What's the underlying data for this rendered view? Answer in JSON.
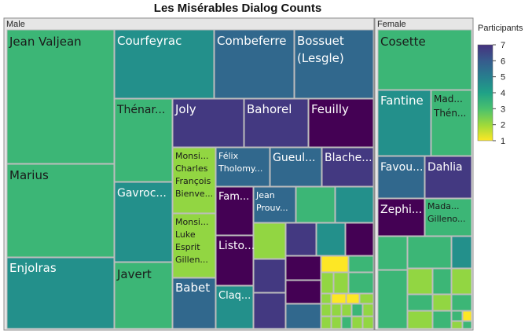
{
  "chart_data": {
    "type": "treemap",
    "title": "Les Misérables Dialog Counts",
    "color_legend": {
      "title": "Participants",
      "min": 1,
      "max": 7,
      "ticks": [
        1,
        2,
        3,
        4,
        5,
        6,
        7
      ]
    },
    "groups": [
      {
        "name": "Male",
        "cells": [
          {
            "label": "Jean Valjean",
            "participants": 3
          },
          {
            "label": "Marius",
            "participants": 3
          },
          {
            "label": "Enjolras",
            "participants": 4
          },
          {
            "label": "Courfeyrac",
            "participants": 4
          },
          {
            "label": "Combeferre",
            "participants": 5
          },
          {
            "label": "Bossuet (Lesgle)",
            "participants": 5
          },
          {
            "label": "Thénar...",
            "participants": 3
          },
          {
            "label": "Joly",
            "participants": 6
          },
          {
            "label": "Bahorel",
            "participants": 6
          },
          {
            "label": "Feuilly",
            "participants": 7
          },
          {
            "label": "Gavroc...",
            "participants": 4
          },
          {
            "label": "Monsi... Charles François Bienve...",
            "participants": 2
          },
          {
            "label": "Félix Tholomy...",
            "participants": 5
          },
          {
            "label": "Gueul...",
            "participants": 5
          },
          {
            "label": "Blache...",
            "participants": 6
          },
          {
            "label": "Fam...",
            "participants": 7
          },
          {
            "label": "Jean Prouv...",
            "participants": 5
          },
          {
            "label": "Monsi... Luke Esprit Gillen...",
            "participants": 2
          },
          {
            "label": "Listo...",
            "participants": 7
          },
          {
            "label": "Javert",
            "participants": 3
          },
          {
            "label": "Babet",
            "participants": 5
          },
          {
            "label": "Claq...",
            "participants": 4
          }
        ]
      },
      {
        "name": "Female",
        "cells": [
          {
            "label": "Cosette",
            "participants": 3
          },
          {
            "label": "Fantine",
            "participants": 4
          },
          {
            "label": "Mad... Thén...",
            "participants": 3
          },
          {
            "label": "Favou...",
            "participants": 5
          },
          {
            "label": "Dahlia",
            "participants": 6
          },
          {
            "label": "Zephi...",
            "participants": 7
          },
          {
            "label": "Mada... Gilleno...",
            "participants": 3
          }
        ]
      }
    ]
  }
}
